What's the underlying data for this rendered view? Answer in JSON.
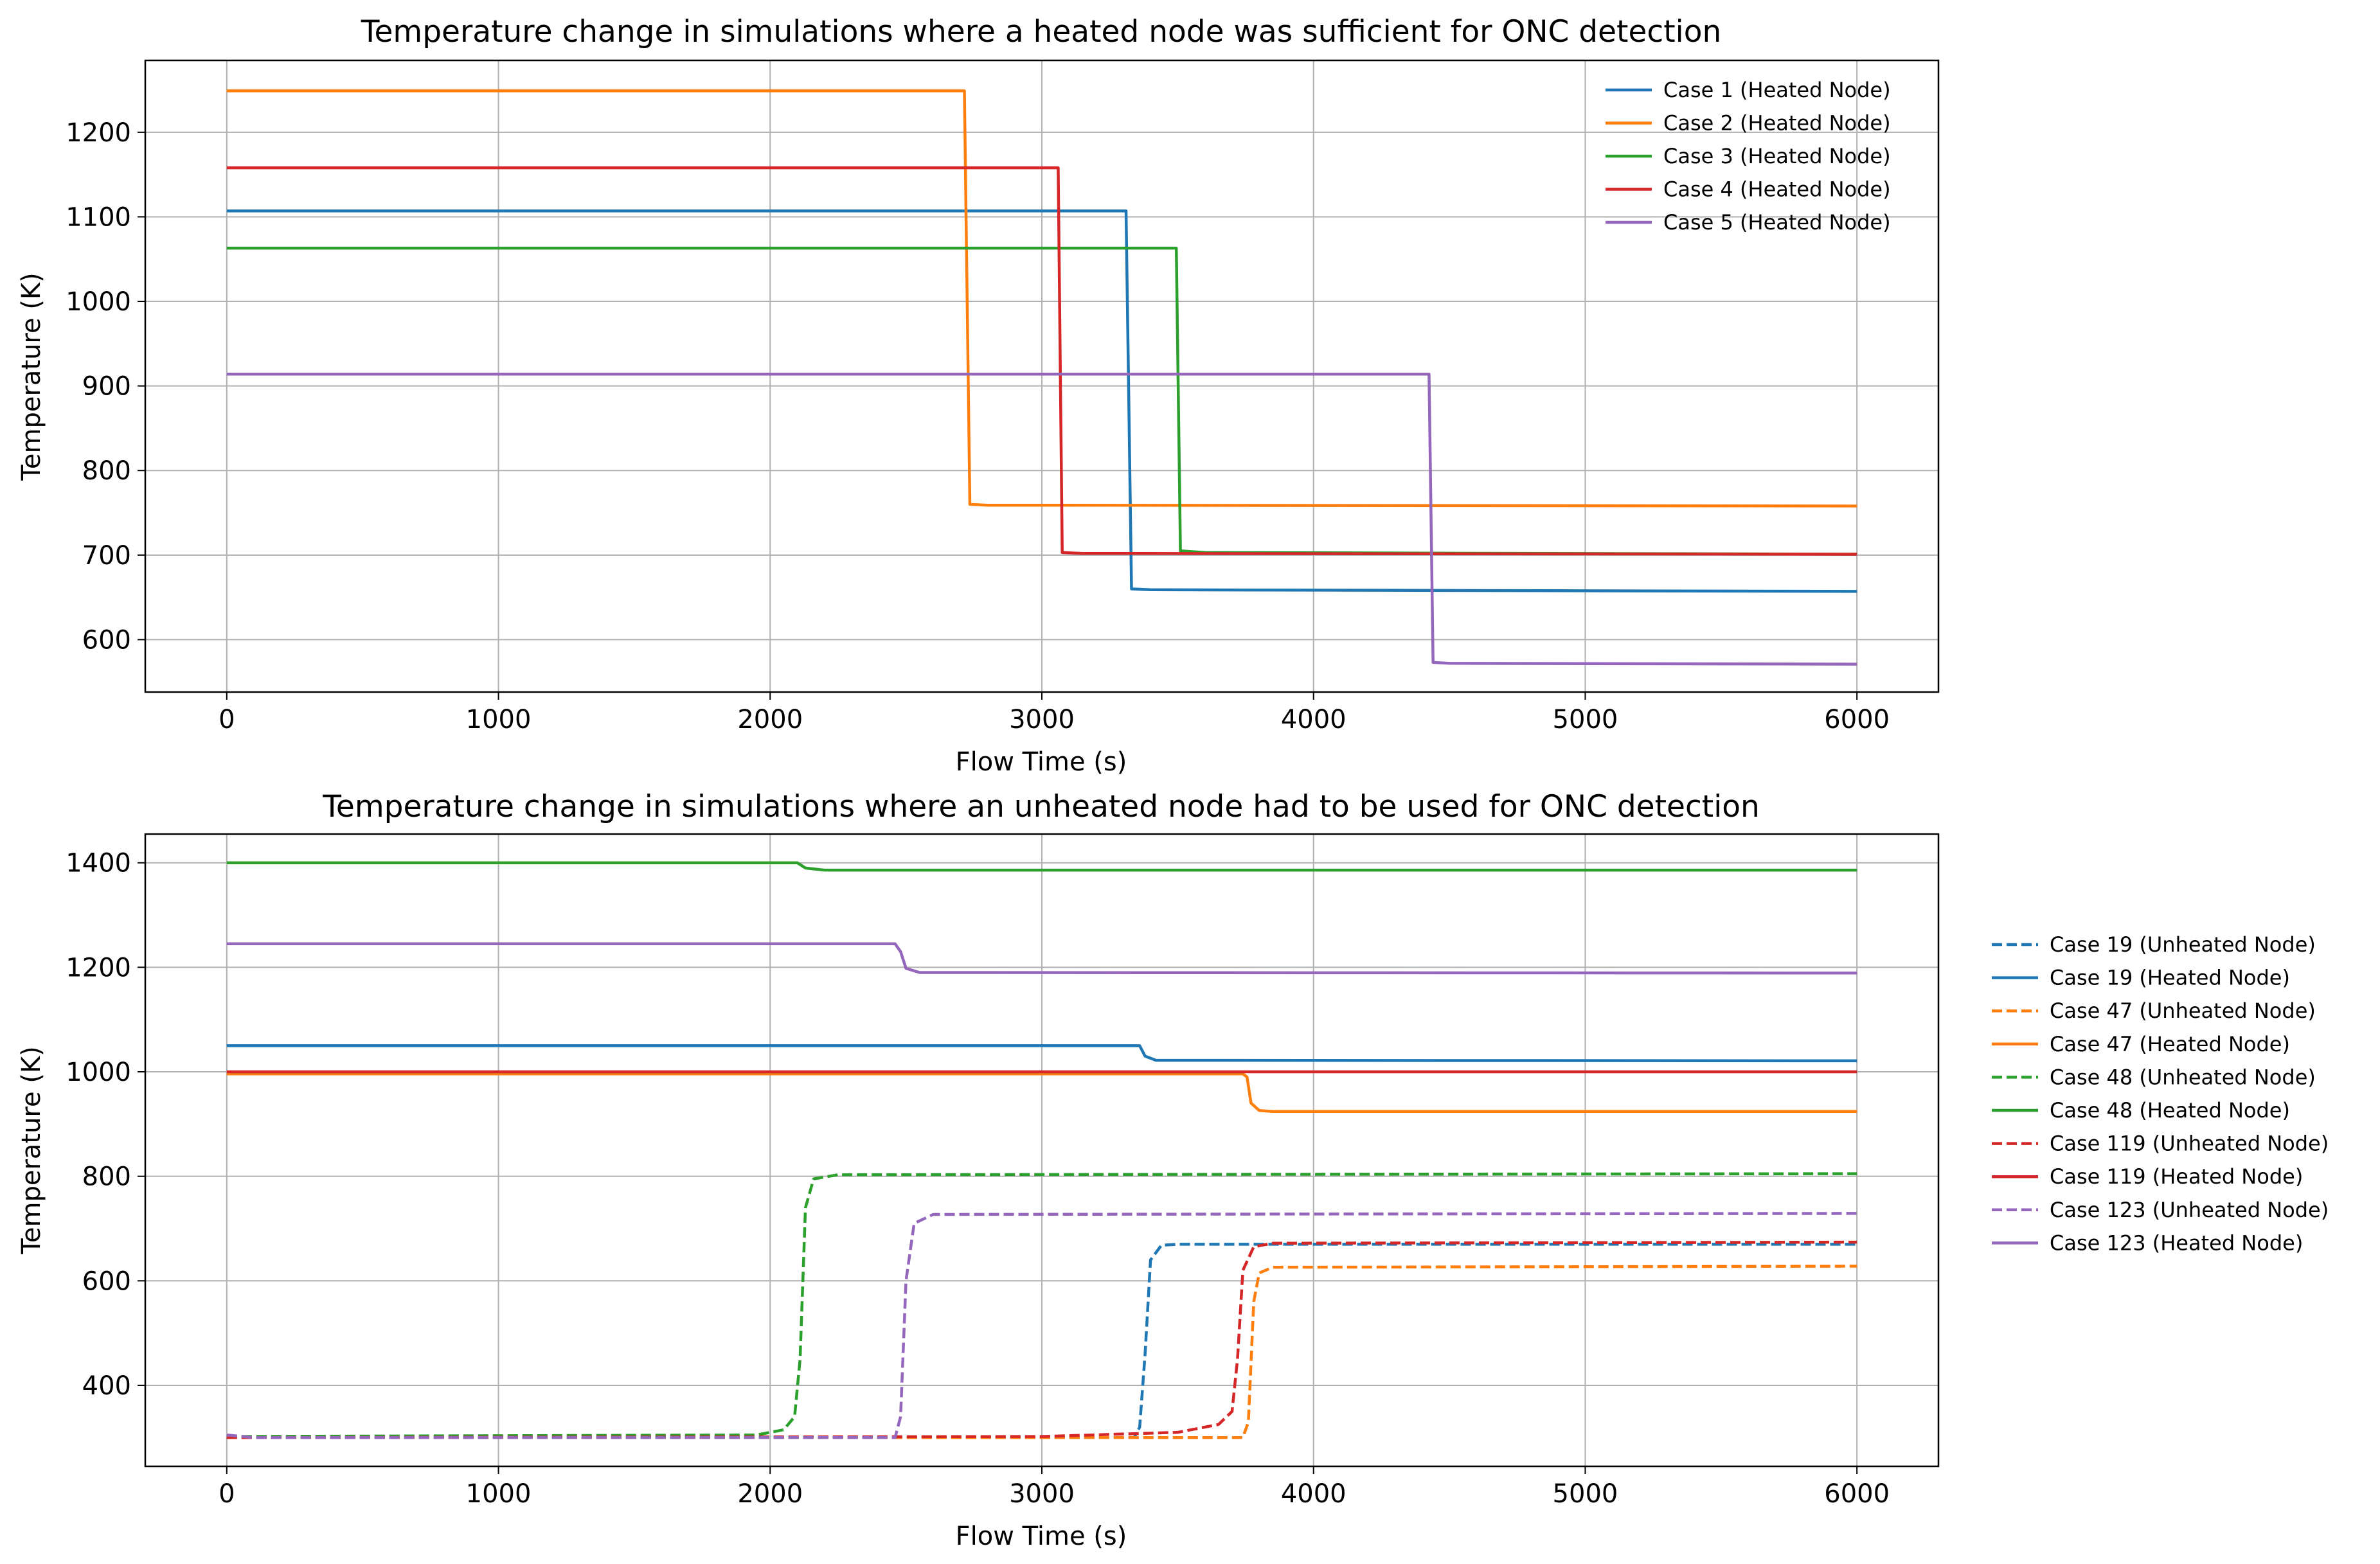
{
  "chart_data": [
    {
      "type": "line",
      "title": "Temperature change in simulations where a heated node was sufficient for ONC detection",
      "xlabel": "Flow Time (s)",
      "ylabel": "Temperature (K)",
      "xlim": [
        -300,
        6300
      ],
      "ylim": [
        538,
        1285
      ],
      "xticks": [
        0,
        1000,
        2000,
        3000,
        4000,
        5000,
        6000
      ],
      "yticks": [
        600,
        700,
        800,
        900,
        1000,
        1100,
        1200
      ],
      "grid": true,
      "legend_position": "upper-right",
      "series": [
        {
          "name": "Case 1 (Heated Node)",
          "color": "#1f77b4",
          "style": "solid",
          "points": [
            [
              0,
              1107
            ],
            [
              3310,
              1107
            ],
            [
              3330,
              660
            ],
            [
              3400,
              659
            ],
            [
              6000,
              657
            ]
          ]
        },
        {
          "name": "Case 2 (Heated Node)",
          "color": "#ff7f0e",
          "style": "solid",
          "points": [
            [
              0,
              1249
            ],
            [
              2715,
              1249
            ],
            [
              2735,
              760
            ],
            [
              2800,
              759
            ],
            [
              6000,
              758
            ]
          ]
        },
        {
          "name": "Case 3 (Heated Node)",
          "color": "#2ca02c",
          "style": "solid",
          "points": [
            [
              0,
              1063
            ],
            [
              3495,
              1063
            ],
            [
              3510,
              705
            ],
            [
              3600,
              703
            ],
            [
              6000,
              701
            ]
          ]
        },
        {
          "name": "Case 4 (Heated Node)",
          "color": "#d62728",
          "style": "solid",
          "points": [
            [
              0,
              1158
            ],
            [
              3060,
              1158
            ],
            [
              3075,
              703
            ],
            [
              3150,
              702
            ],
            [
              6000,
              701
            ]
          ]
        },
        {
          "name": "Case 5 (Heated Node)",
          "color": "#9467bd",
          "style": "solid",
          "points": [
            [
              0,
              914
            ],
            [
              4425,
              914
            ],
            [
              4440,
              573
            ],
            [
              4500,
              572
            ],
            [
              6000,
              571
            ]
          ]
        }
      ]
    },
    {
      "type": "line",
      "title": "Temperature change in simulations where an unheated node had to be used for ONC detection",
      "xlabel": "Flow Time (s)",
      "ylabel": "Temperature (K)",
      "xlim": [
        -300,
        6300
      ],
      "ylim": [
        245,
        1455
      ],
      "xticks": [
        0,
        1000,
        2000,
        3000,
        4000,
        5000,
        6000
      ],
      "yticks": [
        400,
        600,
        800,
        1000,
        1200,
        1400
      ],
      "grid": true,
      "legend_position": "outside-right",
      "series": [
        {
          "name": "Case 19 (Unheated Node)",
          "color": "#1f77b4",
          "style": "dashed",
          "points": [
            [
              0,
              300
            ],
            [
              3340,
              300
            ],
            [
              3360,
              320
            ],
            [
              3380,
              460
            ],
            [
              3400,
              640
            ],
            [
              3440,
              668
            ],
            [
              3500,
              670
            ],
            [
              6000,
              670
            ]
          ]
        },
        {
          "name": "Case 19 (Heated Node)",
          "color": "#1f77b4",
          "style": "solid",
          "points": [
            [
              0,
              1050
            ],
            [
              3360,
              1050
            ],
            [
              3380,
              1030
            ],
            [
              3420,
              1022
            ],
            [
              6000,
              1021
            ]
          ]
        },
        {
          "name": "Case 47 (Unheated Node)",
          "color": "#ff7f0e",
          "style": "dashed",
          "points": [
            [
              0,
              300
            ],
            [
              3740,
              300
            ],
            [
              3760,
              330
            ],
            [
              3780,
              560
            ],
            [
              3800,
              615
            ],
            [
              3850,
              626
            ],
            [
              6000,
              628
            ]
          ]
        },
        {
          "name": "Case 47 (Heated Node)",
          "color": "#ff7f0e",
          "style": "solid",
          "points": [
            [
              0,
              996
            ],
            [
              3740,
              996
            ],
            [
              3755,
              990
            ],
            [
              3770,
              940
            ],
            [
              3800,
              926
            ],
            [
              3850,
              924
            ],
            [
              6000,
              924
            ]
          ]
        },
        {
          "name": "Case 48 (Unheated Node)",
          "color": "#2ca02c",
          "style": "dashed",
          "points": [
            [
              0,
              302
            ],
            [
              1950,
              305
            ],
            [
              2050,
              315
            ],
            [
              2090,
              340
            ],
            [
              2110,
              450
            ],
            [
              2130,
              740
            ],
            [
              2160,
              795
            ],
            [
              2250,
              803
            ],
            [
              6000,
              805
            ]
          ]
        },
        {
          "name": "Case 48 (Heated Node)",
          "color": "#2ca02c",
          "style": "solid",
          "points": [
            [
              0,
              1400
            ],
            [
              2100,
              1400
            ],
            [
              2130,
              1390
            ],
            [
              2200,
              1386
            ],
            [
              6000,
              1386
            ]
          ]
        },
        {
          "name": "Case 119 (Unheated Node)",
          "color": "#d62728",
          "style": "dashed",
          "points": [
            [
              0,
              300
            ],
            [
              3000,
              302
            ],
            [
              3500,
              310
            ],
            [
              3650,
              325
            ],
            [
              3700,
              350
            ],
            [
              3720,
              450
            ],
            [
              3740,
              620
            ],
            [
              3780,
              665
            ],
            [
              3850,
              672
            ],
            [
              6000,
              674
            ]
          ]
        },
        {
          "name": "Case 119 (Heated Node)",
          "color": "#d62728",
          "style": "solid",
          "points": [
            [
              0,
              1000
            ],
            [
              6000,
              1000
            ]
          ]
        },
        {
          "name": "Case 123 (Unheated Node)",
          "color": "#9467bd",
          "style": "dashed",
          "points": [
            [
              0,
              305
            ],
            [
              100,
              300
            ],
            [
              2460,
              300
            ],
            [
              2480,
              340
            ],
            [
              2500,
              600
            ],
            [
              2530,
              710
            ],
            [
              2600,
              727
            ],
            [
              6000,
              729
            ]
          ]
        },
        {
          "name": "Case 123 (Heated Node)",
          "color": "#9467bd",
          "style": "solid",
          "points": [
            [
              0,
              1245
            ],
            [
              2460,
              1245
            ],
            [
              2480,
              1230
            ],
            [
              2500,
              1198
            ],
            [
              2550,
              1190
            ],
            [
              6000,
              1189
            ]
          ]
        }
      ]
    }
  ]
}
